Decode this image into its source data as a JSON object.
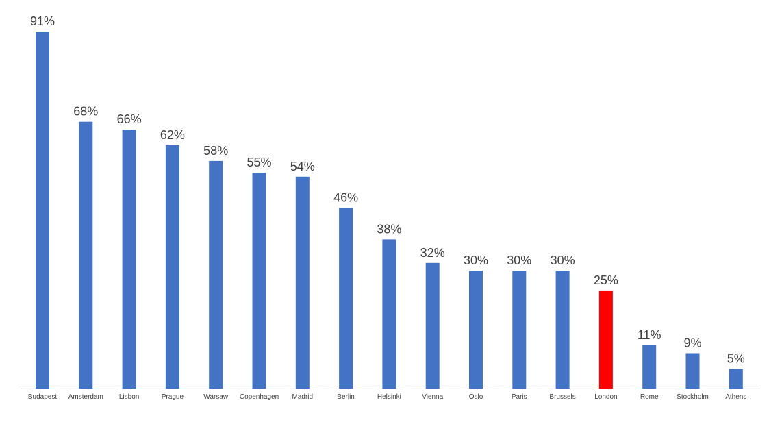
{
  "chart_data": {
    "type": "bar",
    "title": "",
    "xlabel": "",
    "ylabel": "",
    "ylim": [
      0,
      91
    ],
    "grid": false,
    "legend": "none",
    "categories": [
      "Budapest",
      "Amsterdam",
      "Lisbon",
      "Prague",
      "Warsaw",
      "Copenhagen",
      "Madrid",
      "Berlin",
      "Helsinki",
      "Vienna",
      "Oslo",
      "Paris",
      "Brussels",
      "London",
      "Rome",
      "Stockholm",
      "Athens"
    ],
    "values": [
      91,
      68,
      66,
      62,
      58,
      55,
      54,
      46,
      38,
      32,
      30,
      30,
      30,
      25,
      11,
      9,
      5
    ],
    "value_labels": [
      "91%",
      "68%",
      "66%",
      "62%",
      "58%",
      "55%",
      "54%",
      "46%",
      "38%",
      "32%",
      "30%",
      "30%",
      "30%",
      "25%",
      "11%",
      "9%",
      "5%"
    ],
    "highlight_category": "London",
    "colors": {
      "bar": "#4472C4",
      "highlight": "#FF0000",
      "axis": "#BFBFBF",
      "label": "#404040"
    }
  }
}
